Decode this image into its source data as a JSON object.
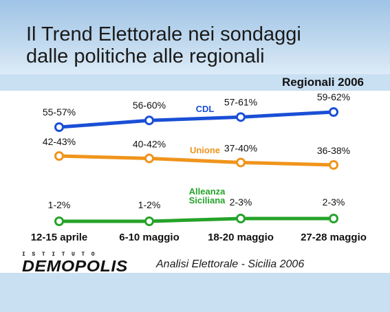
{
  "title": {
    "line1": "Il Trend Elettorale nei sondaggi",
    "line2": "dalle politiche alle regionali"
  },
  "subtitle": "Regionali 2006",
  "footer": {
    "logo_top": "ISTITUTO",
    "logo_main": "DEMOPOLIS",
    "text": "Analisi Elettorale - Sicilia 2006"
  },
  "colors": {
    "header_gradient": [
      "#9fc4e6",
      "#dcebf7"
    ],
    "band": "#c9e0f3",
    "CDL": "#1a4fd6",
    "Unione": "#f0941c",
    "Alleanza Siciliana": "#25a32a"
  },
  "chart_data": {
    "type": "line",
    "categories": [
      "12-15 aprile",
      "6-10 maggio",
      "18-20 maggio",
      "27-28 maggio"
    ],
    "series": [
      {
        "name": "CDL",
        "labels": [
          "55-57%",
          "56-60%",
          "57-61%",
          "59-62%"
        ],
        "values": [
          56,
          58,
          59,
          60.5
        ]
      },
      {
        "name": "Unione",
        "labels": [
          "42-43%",
          "40-42%",
          "37-40%",
          "36-38%"
        ],
        "values": [
          42.5,
          41,
          38.5,
          37
        ]
      },
      {
        "name": "Alleanza Siciliana",
        "label_lines": [
          "Alleanza",
          "Siciliana"
        ],
        "labels": [
          "1-2%",
          "1-2%",
          "2-3%",
          "2-3%"
        ],
        "values": [
          1.5,
          1.5,
          2.5,
          2.5
        ]
      }
    ],
    "grid": false,
    "legend": "inline labels on lines"
  }
}
